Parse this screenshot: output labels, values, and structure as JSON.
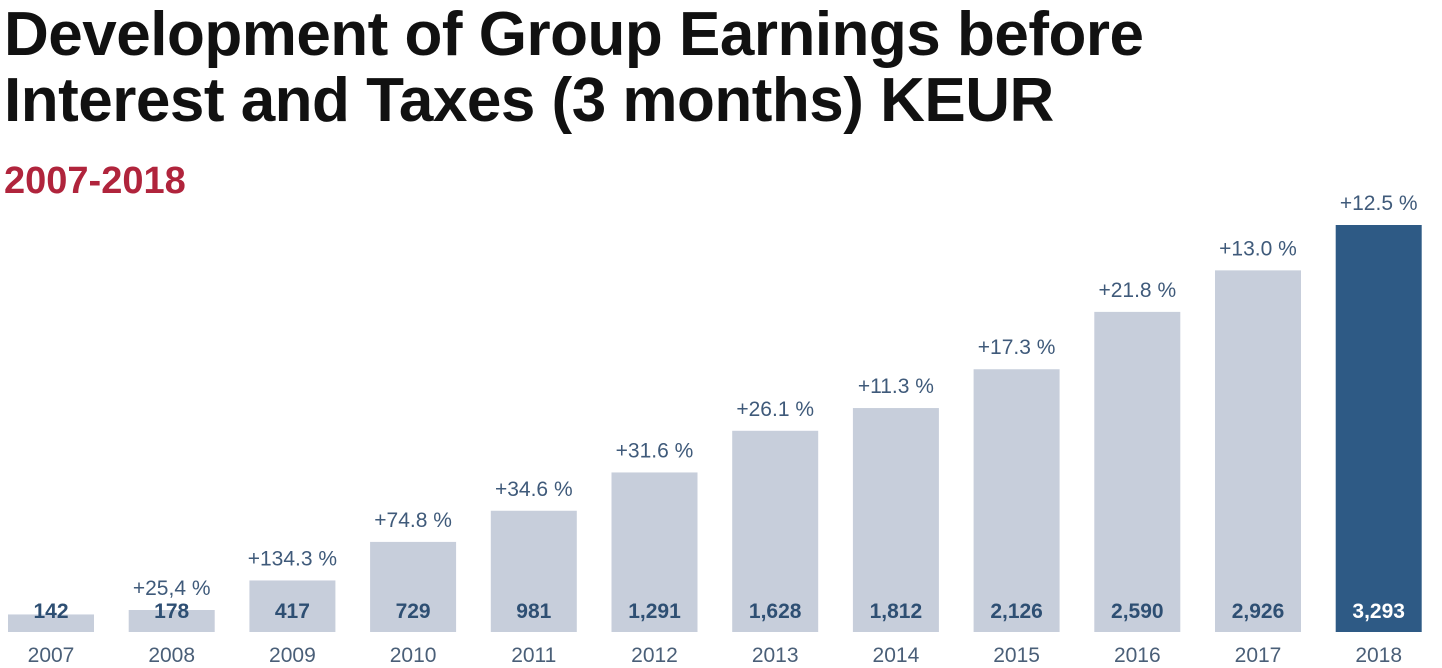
{
  "title_line1": "Development of Group Earnings before",
  "title_line2": "Interest and Taxes (3 months) KEUR",
  "subtitle": "2007-2018",
  "colors": {
    "bar": "#c7cedb",
    "bar_highlight": "#2e5a85",
    "value_text": "#2e4f73",
    "value_text_highlight": "#ffffff",
    "subtitle": "#b0243c"
  },
  "chart_data": {
    "type": "bar",
    "categories": [
      "2007",
      "2008",
      "2009",
      "2010",
      "2011",
      "2012",
      "2013",
      "2014",
      "2015",
      "2016",
      "2017",
      "2018"
    ],
    "values": [
      142,
      178,
      417,
      729,
      981,
      1291,
      1628,
      1812,
      2126,
      2590,
      2926,
      3293
    ],
    "value_labels": [
      "142",
      "178",
      "417",
      "729",
      "981",
      "1,291",
      "1,628",
      "1,812",
      "2,126",
      "2,590",
      "2,926",
      "3,293"
    ],
    "change_labels": [
      "",
      "+25,4 %",
      "+134.3 %",
      "+74.8 %",
      "+34.6 %",
      "+31.6 %",
      "+26.1 %",
      "+11.3 %",
      "+17.3 %",
      "+21.8 %",
      "+13.0 %",
      "+12.5 %"
    ],
    "highlight_index": 11,
    "title": "Development of Group Earnings before Interest and Taxes (3 months) KEUR",
    "subtitle": "2007-2018",
    "xlabel": "",
    "ylabel": "",
    "ylim": [
      0,
      3293
    ],
    "grid": false,
    "legend": "none"
  }
}
